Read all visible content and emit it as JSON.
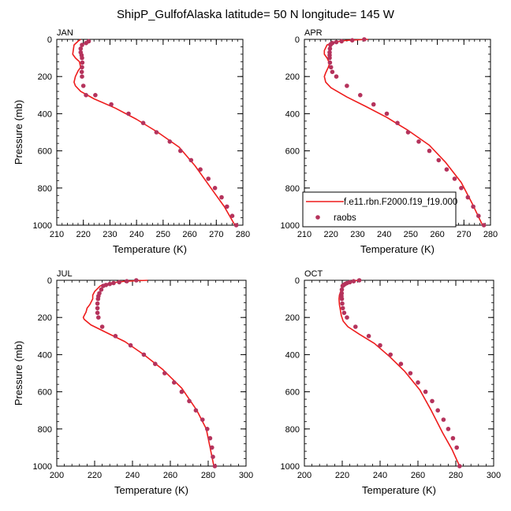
{
  "title": "ShipP_GulfofAlaska  latitude= 50 N longitude= 145 W",
  "colors": {
    "model": "#ee1c1c",
    "raobs": "#b5335c",
    "axis": "#000000"
  },
  "legend": {
    "model_label": "f.e11.rbn.F2000.f19_f19.000",
    "raobs_label": "raobs"
  },
  "chart_data": [
    {
      "type": "line",
      "panel": "JAN",
      "xlabel": "Temperature (K)",
      "ylabel": "Pressure (mb)",
      "xlim": [
        210,
        280
      ],
      "ylim": [
        1000,
        0
      ],
      "xticks": [
        210,
        220,
        230,
        240,
        250,
        260,
        270,
        280
      ],
      "yticks": [
        0,
        200,
        400,
        600,
        800,
        1000
      ],
      "series": [
        {
          "name": "f.e11.rbn.F2000.f19_f19.000",
          "style": "line",
          "x": [
            219,
            218,
            216.5,
            216,
            217,
            218.5,
            219,
            218,
            217,
            216.5,
            217,
            219,
            224,
            232,
            240,
            248,
            256,
            262,
            268,
            273,
            277
          ],
          "y": [
            0,
            10,
            30,
            80,
            100,
            120,
            150,
            170,
            200,
            230,
            250,
            280,
            320,
            370,
            430,
            500,
            580,
            680,
            800,
            900,
            1000
          ]
        },
        {
          "name": "raobs",
          "style": "points",
          "x": [
            222,
            221,
            219.5,
            219,
            219,
            219.3,
            219.5,
            219.6,
            219.5,
            219.4,
            219.5,
            220,
            221,
            224.5,
            230.5,
            237,
            242.5,
            247.5,
            252.5,
            256.5,
            260.5,
            264,
            267,
            269.5,
            272,
            274,
            276,
            277.5
          ],
          "y": [
            10,
            20,
            30,
            50,
            70,
            85,
            100,
            125,
            150,
            175,
            200,
            250,
            300,
            300,
            350,
            400,
            450,
            500,
            550,
            600,
            650,
            700,
            750,
            800,
            850,
            900,
            950,
            1000
          ]
        }
      ]
    },
    {
      "type": "line",
      "panel": "APR",
      "xlabel": "Temperature (K)",
      "ylabel": "",
      "xlim": [
        210,
        280
      ],
      "ylim": [
        1000,
        0
      ],
      "xticks": [
        210,
        220,
        230,
        240,
        250,
        260,
        270,
        280
      ],
      "yticks": [
        0,
        200,
        400,
        600,
        800,
        1000
      ],
      "series": [
        {
          "name": "f.e11.rbn.F2000.f19_f19.000",
          "style": "line",
          "x": [
            234,
            226,
            221,
            218.5,
            217.5,
            217.5,
            218.5,
            219.5,
            219,
            218,
            217.5,
            218,
            220,
            226,
            233,
            241,
            249,
            257,
            263,
            269,
            273,
            277
          ],
          "y": [
            0,
            5,
            15,
            30,
            60,
            80,
            100,
            130,
            150,
            180,
            200,
            230,
            260,
            310,
            360,
            420,
            490,
            570,
            660,
            770,
            880,
            1000
          ]
        },
        {
          "name": "raobs",
          "style": "points",
          "x": [
            232.5,
            228,
            224,
            222,
            220.5,
            220,
            219.8,
            219.6,
            219.5,
            219.5,
            219.5,
            219.6,
            220,
            220.5,
            222,
            226,
            231,
            236,
            241,
            245,
            249,
            253,
            257,
            260.5,
            263.5,
            266.5,
            269,
            271.5,
            273.5,
            275.5,
            277.5
          ],
          "y": [
            0,
            5,
            10,
            15,
            20,
            25,
            30,
            50,
            70,
            85,
            100,
            125,
            150,
            175,
            200,
            250,
            300,
            350,
            400,
            450,
            500,
            550,
            600,
            650,
            700,
            750,
            800,
            850,
            900,
            950,
            1000
          ]
        }
      ]
    },
    {
      "type": "line",
      "panel": "JUL",
      "xlabel": "Temperature (K)",
      "ylabel": "Pressure (mb)",
      "xlim": [
        200,
        300
      ],
      "ylim": [
        1000,
        0
      ],
      "xticks": [
        200,
        220,
        240,
        260,
        280,
        300
      ],
      "yticks": [
        0,
        200,
        400,
        600,
        800,
        1000
      ],
      "series": [
        {
          "name": "f.e11.rbn.F2000.f19_f19.000",
          "style": "line",
          "x": [
            248,
            236,
            228,
            223,
            220,
            219,
            219,
            217.5,
            216,
            215.5,
            214.5,
            214,
            214.5,
            218,
            226,
            236,
            246,
            256,
            266,
            274,
            279,
            281,
            282,
            283
          ],
          "y": [
            0,
            5,
            15,
            30,
            60,
            80,
            100,
            130,
            150,
            170,
            190,
            200,
            210,
            240,
            280,
            330,
            400,
            480,
            580,
            700,
            800,
            900,
            950,
            1000
          ]
        },
        {
          "name": "raobs",
          "style": "points",
          "x": [
            242,
            237,
            233,
            230,
            228,
            226,
            224.5,
            223.5,
            222.5,
            222,
            221.8,
            221.5,
            221.5,
            221.5,
            222,
            224,
            231,
            239,
            246,
            252,
            257,
            262,
            266,
            270,
            273.5,
            277,
            279.5,
            281,
            282,
            282.5,
            283.5
          ],
          "y": [
            0,
            5,
            10,
            15,
            20,
            25,
            30,
            50,
            70,
            85,
            100,
            125,
            150,
            175,
            200,
            250,
            300,
            350,
            400,
            450,
            500,
            550,
            600,
            650,
            700,
            750,
            800,
            850,
            900,
            950,
            1000
          ]
        }
      ]
    },
    {
      "type": "line",
      "panel": "OCT",
      "xlabel": "Temperature (K)",
      "ylabel": "",
      "xlim": [
        200,
        300
      ],
      "ylim": [
        1000,
        0
      ],
      "xticks": [
        200,
        220,
        240,
        260,
        280,
        300
      ],
      "yticks": [
        0,
        200,
        400,
        600,
        800,
        1000
      ],
      "series": [
        {
          "name": "f.e11.rbn.F2000.f19_f19.000",
          "style": "line",
          "x": [
            228,
            224,
            221,
            219.5,
            218.5,
            218.3,
            218.5,
            219,
            219.5,
            220.5,
            223,
            229,
            237,
            245,
            253,
            261,
            267,
            273,
            278,
            282
          ],
          "y": [
            0,
            10,
            25,
            50,
            80,
            100,
            130,
            160,
            190,
            220,
            250,
            290,
            340,
            410,
            490,
            590,
            700,
            820,
            910,
            1000
          ]
        },
        {
          "name": "raobs",
          "style": "points",
          "x": [
            229,
            226,
            224,
            222.5,
            221.5,
            220.8,
            220.2,
            219.8,
            219.7,
            219.6,
            219.8,
            220,
            220.3,
            221,
            222.5,
            227,
            234,
            240,
            245.5,
            251,
            256,
            260,
            264,
            267.5,
            270.5,
            273.5,
            276,
            278.5,
            280.5,
            282
          ],
          "y": [
            0,
            5,
            10,
            15,
            20,
            25,
            30,
            50,
            70,
            85,
            100,
            125,
            150,
            175,
            200,
            250,
            300,
            350,
            400,
            450,
            500,
            550,
            600,
            650,
            700,
            750,
            800,
            850,
            900,
            1000
          ]
        }
      ]
    }
  ]
}
